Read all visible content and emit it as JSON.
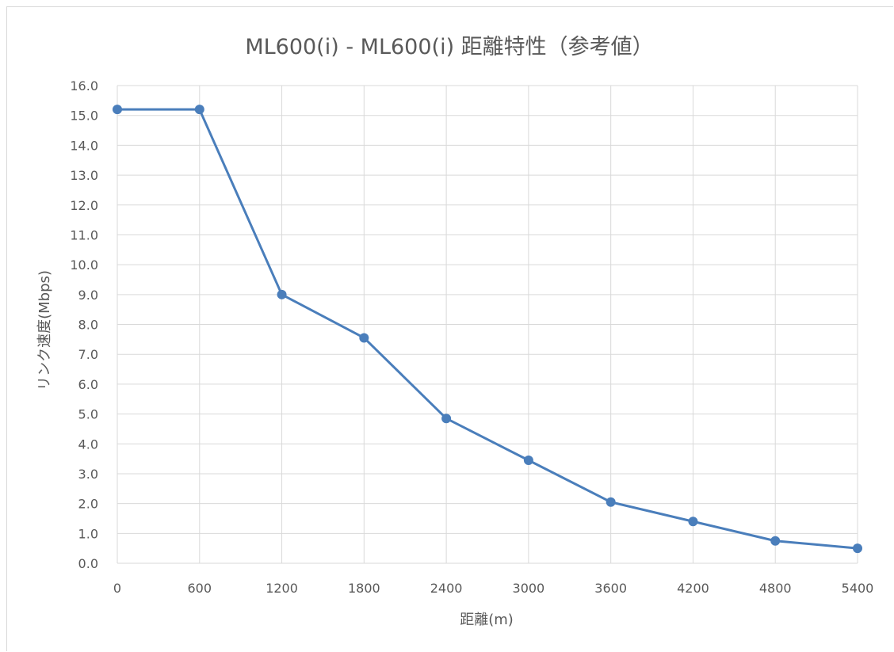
{
  "chart_data": {
    "type": "line",
    "title": "ML600(i) - ML600(i) 距離特性（参考値）",
    "xlabel": "距離(m)",
    "ylabel": "リンク速度(Mbps)",
    "x": [
      0,
      600,
      1200,
      1800,
      2400,
      3000,
      3600,
      4200,
      4800,
      5400
    ],
    "x_tick_labels": [
      "0",
      "600",
      "1200",
      "1800",
      "2400",
      "3000",
      "3600",
      "4200",
      "4800",
      "5400"
    ],
    "y_tick_labels": [
      "0.0",
      "1.0",
      "2.0",
      "3.0",
      "4.0",
      "5.0",
      "6.0",
      "7.0",
      "8.0",
      "9.0",
      "10.0",
      "11.0",
      "12.0",
      "13.0",
      "14.0",
      "15.0",
      "16.0"
    ],
    "xlim": [
      0,
      5400
    ],
    "ylim": [
      0,
      16
    ],
    "grid": true,
    "series": [
      {
        "values": [
          15.2,
          15.2,
          9.0,
          7.55,
          4.85,
          3.45,
          2.05,
          1.4,
          0.75,
          0.5
        ],
        "color": "#4a7ebb"
      }
    ]
  }
}
